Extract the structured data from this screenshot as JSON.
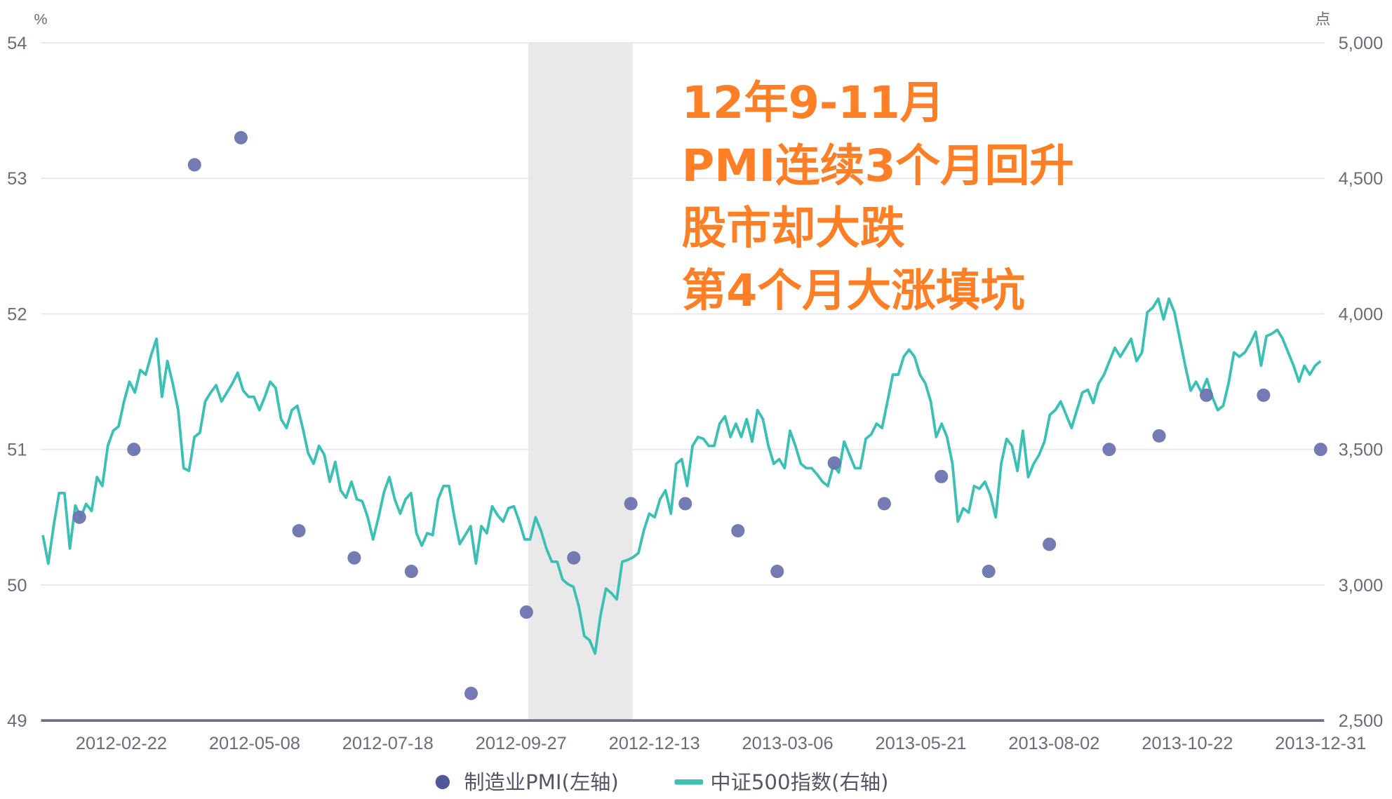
{
  "chart_data": {
    "type": "scatter+line",
    "left_axis": {
      "unit": "%",
      "ticks": [
        "49",
        "50",
        "51",
        "52",
        "53",
        "54"
      ],
      "range": [
        49,
        54
      ]
    },
    "right_axis": {
      "unit": "点",
      "ticks": [
        "2,500",
        "3,000",
        "3,500",
        "4,000",
        "4,500",
        "5,000"
      ],
      "range": [
        2500,
        5000
      ]
    },
    "x_ticks": [
      "2012-02-22",
      "2012-05-08",
      "2012-07-18",
      "2012-09-27",
      "2012-12-13",
      "2013-03-06",
      "2013-05-21",
      "2013-08-02",
      "2013-10-22",
      "2013-12-31"
    ],
    "x_range": [
      "2012-01-04",
      "2013-12-31"
    ],
    "grid": true,
    "legend_position": "bottom",
    "highlight_range": [
      "2012-10-08",
      "2012-12-03"
    ],
    "colors": {
      "pmi": "#6b74ae",
      "index": "#3cc0b4",
      "highlight": "#e9e9e9",
      "annotation": "#ff7f27"
    },
    "annotation": [
      "12年9-11月",
      "PMI连续3个月回升",
      "股市却大跌",
      "第4个月大涨填坑"
    ],
    "series": [
      {
        "name": "制造业PMI(左轴)",
        "type": "scatter",
        "axis": "left",
        "x": [
          "2012-01",
          "2012-02",
          "2012-03",
          "2012-04",
          "2012-05",
          "2012-06",
          "2012-07",
          "2012-08",
          "2012-09",
          "2012-10",
          "2012-11",
          "2012-12",
          "2013-01",
          "2013-02",
          "2013-03",
          "2013-04",
          "2013-05",
          "2013-06",
          "2013-07",
          "2013-08",
          "2013-09",
          "2013-10",
          "2013-11",
          "2013-12"
        ],
        "values": [
          50.5,
          51.0,
          53.1,
          53.3,
          50.4,
          50.2,
          50.1,
          49.2,
          49.8,
          50.2,
          50.6,
          50.6,
          50.4,
          50.1,
          50.9,
          50.6,
          50.8,
          50.1,
          50.3,
          51.0,
          51.1,
          51.4,
          51.4,
          51.0
        ]
      },
      {
        "name": "中证500指数(右轴)",
        "type": "line",
        "axis": "right",
        "values": [
          3184,
          3079,
          3217,
          3339,
          3339,
          3135,
          3293,
          3250,
          3299,
          3273,
          3398,
          3365,
          3513,
          3569,
          3585,
          3677,
          3750,
          3710,
          3793,
          3776,
          3848,
          3908,
          3694,
          3826,
          3743,
          3645,
          3431,
          3421,
          3546,
          3562,
          3677,
          3710,
          3737,
          3677,
          3710,
          3743,
          3783,
          3717,
          3694,
          3694,
          3645,
          3694,
          3750,
          3727,
          3612,
          3579,
          3645,
          3661,
          3579,
          3487,
          3447,
          3513,
          3480,
          3381,
          3454,
          3349,
          3322,
          3381,
          3316,
          3309,
          3250,
          3168,
          3250,
          3342,
          3398,
          3316,
          3263,
          3316,
          3339,
          3191,
          3145,
          3191,
          3184,
          3316,
          3365,
          3365,
          3250,
          3151,
          3184,
          3217,
          3079,
          3217,
          3191,
          3290,
          3257,
          3234,
          3283,
          3290,
          3234,
          3168,
          3168,
          3250,
          3201,
          3135,
          3086,
          3086,
          3020,
          3003,
          2993,
          2921,
          2812,
          2796,
          2747,
          2888,
          2987,
          2970,
          2947,
          3086,
          3092,
          3102,
          3118,
          3201,
          3263,
          3250,
          3316,
          3349,
          3263,
          3447,
          3464,
          3365,
          3513,
          3546,
          3539,
          3513,
          3513,
          3595,
          3622,
          3546,
          3595,
          3546,
          3612,
          3529,
          3645,
          3612,
          3513,
          3447,
          3464,
          3431,
          3569,
          3513,
          3447,
          3431,
          3431,
          3408,
          3381,
          3365,
          3441,
          3415,
          3529,
          3480,
          3431,
          3431,
          3539,
          3556,
          3595,
          3579,
          3677,
          3776,
          3776,
          3842,
          3868,
          3842,
          3776,
          3743,
          3677,
          3546,
          3595,
          3546,
          3447,
          3234,
          3283,
          3267,
          3365,
          3355,
          3381,
          3332,
          3250,
          3447,
          3539,
          3513,
          3421,
          3569,
          3398,
          3447,
          3480,
          3529,
          3628,
          3645,
          3677,
          3628,
          3579,
          3645,
          3710,
          3720,
          3671,
          3743,
          3776,
          3826,
          3875,
          3842,
          3875,
          3908,
          3826,
          3858,
          4006,
          4023,
          4056,
          3980,
          4056,
          4006,
          3908,
          3809,
          3717,
          3750,
          3710,
          3760,
          3694,
          3645,
          3661,
          3743,
          3858,
          3842,
          3858,
          3891,
          3934,
          3809,
          3918,
          3927,
          3941,
          3908,
          3858,
          3809,
          3750,
          3809,
          3776,
          3809,
          3826
        ]
      }
    ]
  }
}
